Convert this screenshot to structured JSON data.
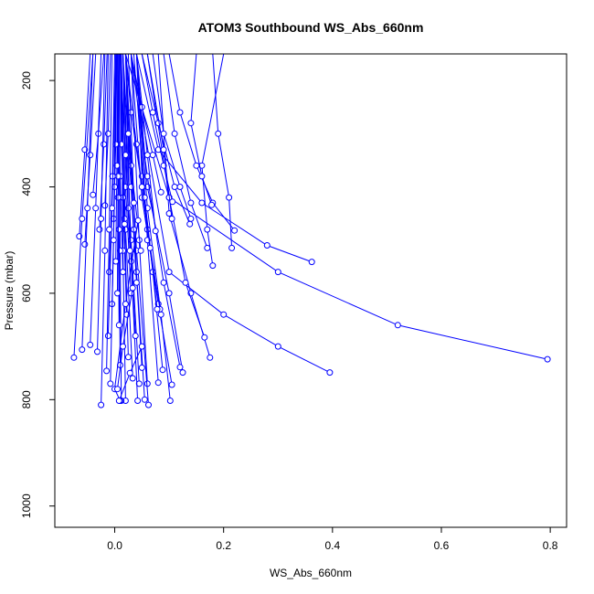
{
  "chart_data": {
    "type": "line",
    "title": "ATOM3 Southbound WS_Abs_660nm",
    "xlabel": "WS_Abs_660nm",
    "ylabel": "Pressure (mbar)",
    "xlim": [
      -0.11,
      0.83
    ],
    "ylim": [
      1040,
      150
    ],
    "y_reversed": true,
    "grid": false,
    "legend": "none",
    "x_ticks": [
      0.0,
      0.2,
      0.4,
      0.6,
      0.8
    ],
    "x_tick_labels": [
      "0.0",
      "0.2",
      "0.4",
      "0.6",
      "0.8"
    ],
    "y_ticks": [
      200,
      400,
      600,
      800,
      1000
    ],
    "y_tick_labels": [
      "200",
      "400",
      "600",
      "800",
      "1000"
    ],
    "series_color": "#0000ff",
    "marker": "open-circle",
    "series": [
      {
        "x": [
          0.795,
          0.52,
          0.3,
          0.1,
          0.02
        ],
        "y": [
          724,
          660,
          560,
          420,
          150
        ]
      },
      {
        "x": [
          0.395,
          0.3,
          0.2,
          0.1,
          0.03
        ],
        "y": [
          749,
          700,
          640,
          560,
          150
        ]
      },
      {
        "x": [
          0.362,
          0.28,
          0.16,
          0.08,
          0.04
        ],
        "y": [
          541,
          510,
          430,
          330,
          150
        ]
      },
      {
        "x": [
          0.22,
          0.18,
          0.15,
          0.12,
          0.1
        ],
        "y": [
          482,
          430,
          360,
          260,
          150
        ]
      },
      {
        "x": [
          0.215,
          0.21,
          0.19,
          0.18
        ],
        "y": [
          515,
          420,
          300,
          150
        ]
      },
      {
        "x": [
          0.18,
          0.17,
          0.16,
          0.2
        ],
        "y": [
          548,
          480,
          360,
          150
        ]
      },
      {
        "x": [
          0.178,
          0.16,
          0.14,
          0.15
        ],
        "y": [
          434,
          380,
          280,
          150
        ]
      },
      {
        "x": [
          0.175,
          0.14,
          0.1,
          0.08
        ],
        "y": [
          721,
          600,
          450,
          150
        ]
      },
      {
        "x": [
          0.17,
          0.14,
          0.11,
          0.09
        ],
        "y": [
          515,
          430,
          300,
          150
        ]
      },
      {
        "x": [
          0.165,
          0.13,
          0.1,
          0.06
        ],
        "y": [
          683,
          580,
          420,
          150
        ]
      },
      {
        "x": [
          0.14,
          0.12,
          0.09,
          0.07
        ],
        "y": [
          460,
          400,
          300,
          150
        ]
      },
      {
        "x": [
          0.138,
          0.11,
          0.08,
          0.05
        ],
        "y": [
          470,
          400,
          280,
          150
        ]
      },
      {
        "x": [
          0.125,
          0.1,
          0.06,
          0.04
        ],
        "y": [
          749,
          600,
          400,
          150
        ]
      },
      {
        "x": [
          0.12,
          0.09,
          0.06,
          0.03
        ],
        "y": [
          739,
          580,
          380,
          150
        ]
      },
      {
        "x": [
          0.106,
          0.09,
          0.07,
          0.05
        ],
        "y": [
          428,
          360,
          260,
          150
        ]
      },
      {
        "x": [
          0.105,
          0.08,
          0.05,
          0.03
        ],
        "y": [
          772,
          620,
          420,
          150
        ]
      },
      {
        "x": [
          0.102,
          0.085,
          0.06,
          0.04
        ],
        "y": [
          802,
          640,
          440,
          150
        ]
      },
      {
        "x": [
          0.105,
          0.09,
          0.06
        ],
        "y": [
          460,
          330,
          150
        ]
      },
      {
        "x": [
          0.085,
          0.07,
          0.05,
          0.03
        ],
        "y": [
          410,
          340,
          250,
          150
        ]
      },
      {
        "x": [
          0.088,
          0.07,
          0.05,
          0.04
        ],
        "y": [
          744,
          560,
          380,
          150
        ]
      },
      {
        "x": [
          0.083,
          0.06,
          0.04,
          0.02
        ],
        "y": [
          630,
          480,
          320,
          150
        ]
      },
      {
        "x": [
          0.08,
          0.06,
          0.04
        ],
        "y": [
          768,
          500,
          150
        ]
      },
      {
        "x": [
          0.075,
          0.06,
          0.04
        ],
        "y": [
          483,
          340,
          150
        ]
      },
      {
        "x": [
          0.078,
          0.055,
          0.035
        ],
        "y": [
          630,
          420,
          150
        ]
      },
      {
        "x": [
          0.065,
          0.05,
          0.03,
          0.02
        ],
        "y": [
          515,
          400,
          260,
          150
        ]
      },
      {
        "x": [
          0.06,
          0.045,
          0.03
        ],
        "y": [
          770,
          500,
          150
        ]
      },
      {
        "x": [
          0.062,
          0.04,
          0.02
        ],
        "y": [
          810,
          520,
          150
        ]
      },
      {
        "x": [
          0.055,
          0.04,
          0.025
        ],
        "y": [
          800,
          560,
          150
        ]
      },
      {
        "x": [
          0.05,
          0.035,
          0.02
        ],
        "y": [
          740,
          480,
          150
        ]
      },
      {
        "x": [
          0.048,
          0.03,
          0.02
        ],
        "y": [
          520,
          360,
          150
        ]
      },
      {
        "x": [
          0.045,
          0.03,
          0.015
        ],
        "y": [
          770,
          500,
          150
        ]
      },
      {
        "x": [
          0.042,
          0.03,
          0.02
        ],
        "y": [
          802,
          540,
          150
        ]
      },
      {
        "x": [
          0.04,
          0.03,
          0.015
        ],
        "y": [
          580,
          400,
          150
        ]
      },
      {
        "x": [
          0.038,
          0.025,
          0.015
        ],
        "y": [
          680,
          440,
          150
        ]
      },
      {
        "x": [
          0.035,
          0.025,
          0.02
        ],
        "y": [
          430,
          300,
          150
        ]
      },
      {
        "x": [
          0.033,
          0.02,
          0.012
        ],
        "y": [
          760,
          480,
          150
        ]
      },
      {
        "x": [
          0.03,
          0.02,
          0.015
        ],
        "y": [
          600,
          400,
          150
        ]
      },
      {
        "x": [
          0.028,
          0.02,
          0.01
        ],
        "y": [
          520,
          340,
          150
        ]
      },
      {
        "x": [
          0.025,
          0.018,
          0.012
        ],
        "y": [
          720,
          460,
          150
        ]
      },
      {
        "x": [
          0.022,
          0.015,
          0.01
        ],
        "y": [
          640,
          420,
          150
        ]
      },
      {
        "x": [
          0.02,
          0.015,
          0.012
        ],
        "y": [
          802,
          520,
          150
        ]
      },
      {
        "x": [
          0.018,
          0.012,
          0.01
        ],
        "y": [
          470,
          320,
          150
        ]
      },
      {
        "x": [
          0.015,
          0.01,
          0.008
        ],
        "y": [
          560,
          380,
          150
        ]
      },
      {
        "x": [
          0.012,
          0.01,
          0.008
        ],
        "y": [
          802,
          520,
          150
        ]
      },
      {
        "x": [
          0.01,
          0.008,
          0.006
        ],
        "y": [
          735,
          480,
          150
        ]
      },
      {
        "x": [
          0.008,
          0.006,
          0.005
        ],
        "y": [
          660,
          420,
          150
        ]
      },
      {
        "x": [
          0.005,
          0.006,
          0.008
        ],
        "y": [
          600,
          380,
          150
        ]
      },
      {
        "x": [
          0.002,
          0.004,
          0.006
        ],
        "y": [
          540,
          360,
          150
        ]
      },
      {
        "x": [
          -0.002,
          0.002,
          0.004
        ],
        "y": [
          460,
          320,
          150
        ]
      },
      {
        "x": [
          -0.005,
          0.0,
          0.003
        ],
        "y": [
          620,
          400,
          150
        ]
      },
      {
        "x": [
          -0.008,
          -0.002,
          0.002
        ],
        "y": [
          770,
          500,
          150
        ]
      },
      {
        "x": [
          -0.01,
          -0.004,
          0.0
        ],
        "y": [
          560,
          380,
          150
        ]
      },
      {
        "x": [
          -0.012,
          -0.005,
          0.002
        ],
        "y": [
          680,
          440,
          150
        ]
      },
      {
        "x": [
          -0.015,
          -0.01,
          -0.005
        ],
        "y": [
          746,
          480,
          150
        ]
      },
      {
        "x": [
          -0.018,
          -0.012,
          -0.008
        ],
        "y": [
          435,
          300,
          150
        ]
      },
      {
        "x": [
          -0.025,
          -0.018,
          -0.012
        ],
        "y": [
          810,
          520,
          150
        ]
      },
      {
        "x": [
          -0.028,
          -0.02,
          -0.014
        ],
        "y": [
          480,
          320,
          150
        ]
      },
      {
        "x": [
          -0.032,
          -0.025,
          -0.018
        ],
        "y": [
          710,
          460,
          150
        ]
      },
      {
        "x": [
          -0.04,
          -0.03,
          -0.02
        ],
        "y": [
          415,
          300,
          150
        ]
      },
      {
        "x": [
          -0.045,
          -0.035,
          -0.025
        ],
        "y": [
          697,
          440,
          150
        ]
      },
      {
        "x": [
          -0.055,
          -0.045,
          -0.035
        ],
        "y": [
          508,
          340,
          150
        ]
      },
      {
        "x": [
          -0.06,
          -0.05,
          -0.04
        ],
        "y": [
          706,
          440,
          150
        ]
      },
      {
        "x": [
          -0.065,
          -0.055,
          -0.045
        ],
        "y": [
          493,
          330,
          150
        ]
      },
      {
        "x": [
          -0.075,
          -0.06,
          -0.04
        ],
        "y": [
          721,
          460,
          150
        ]
      },
      {
        "x": [
          0.043,
          0.02,
          0.0,
          0.01
        ],
        "y": [
          463,
          620,
          780,
          802
        ]
      },
      {
        "x": [
          0.033,
          0.015,
          0.005
        ],
        "y": [
          590,
          700,
          780
        ]
      },
      {
        "x": [
          0.05,
          0.028,
          0.008
        ],
        "y": [
          700,
          750,
          802
        ]
      }
    ]
  }
}
